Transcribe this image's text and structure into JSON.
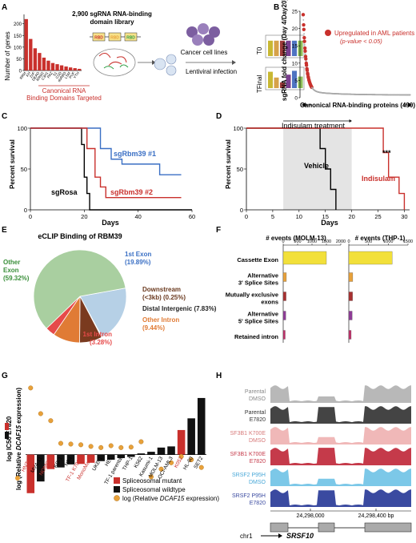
{
  "panels": {
    "A": {
      "letter": "A",
      "ylabel": "Number of genes",
      "library_line1": "2,900 sgRNA  RNA-binding",
      "library_line2": "domain library",
      "domain_boxes": [
        "RBD",
        "RBD",
        "RBD"
      ],
      "domain_colors": [
        "#c9302c",
        "#e8a13a",
        "#2e9e44"
      ],
      "xcaption_line1": "Canonical RNA",
      "xcaption_line2": "Binding Domains Targeted",
      "infection_label": "Lentiviral infection",
      "cells_label": "Cancer cell lines",
      "t0_label": "T0",
      "tfinal_label": "TFinal",
      "t0_bars": [
        {
          "h": 0.8,
          "color": "#c8b833"
        },
        {
          "h": 0.8,
          "color": "#d6a24a"
        },
        {
          "h": 0.8,
          "color": "#9e3a3a"
        },
        {
          "h": 0.8,
          "color": "#7a3f8f"
        },
        {
          "h": 0.8,
          "color": "#4f74c2"
        },
        {
          "h": 0.8,
          "color": "#8ebf5a"
        }
      ],
      "tfinal_bars": [
        {
          "h": 0.85,
          "color": "#c8b833"
        },
        {
          "h": 0.55,
          "color": "#d6a24a"
        },
        {
          "h": 0.3,
          "color": "#9e3a3a"
        },
        {
          "h": 0.7,
          "color": "#7a3f8f"
        },
        {
          "h": 0.9,
          "color": "#4f74c2"
        },
        {
          "h": 0.6,
          "color": "#8ebf5a"
        }
      ]
    },
    "B": {
      "letter": "B",
      "legend_line1": "Upregulated in AML patients",
      "legend_line2": "(p-value < 0.05)",
      "xlabel": "Canonical RNA-binding proteins (490)"
    },
    "C": {
      "letter": "C",
      "sgrbm39_1": "sgRbm39 #1",
      "sgrbm39_2": "sgRbm39 #2",
      "sgrosa": "sgRosa"
    },
    "D": {
      "letter": "D",
      "treatment": "Indisulam treatment",
      "vehicle": "Vehicle",
      "indisulam": "Indisulam",
      "stars": "***"
    },
    "E": {
      "letter": "E",
      "title": "eCLIP Binding of RBM39",
      "other_exon_1": "Other",
      "other_exon_2": "Exon",
      "other_exon_3": "(59.32%)",
      "first_exon_1": "1st Exon",
      "first_exon_2": "(19.89%)",
      "downstream_1": "Downstream",
      "downstream_2": "(<3kb) (0.25%)",
      "distal": "Distal Intergenic (7.83%)",
      "other_intron_1": "Other Intron",
      "other_intron_2": "(9.44%)",
      "first_intron_1": "1st Intron",
      "first_intron_2": "(3.28%)"
    },
    "F": {
      "letter": "F",
      "molm_title": "# events (MOLM-13)",
      "thp_title": "# events (THP-1)"
    },
    "G": {
      "letter": "G",
      "ylabel_1": "log  IC50 E7820",
      "ylabel_2a": "log (Relative",
      "ylabel_2b": "DCAF15",
      "ylabel_2c": "expression)",
      "legend_mutant": "Spliceosomal mutant",
      "legend_wildtype": "Spliceosomal wildtype",
      "legend_dot_a": "log (Relative",
      "legend_dot_b": "DCAF15",
      "legend_dot_c": "expression)"
    },
    "H": {
      "letter": "H",
      "coord_left": "24,298,000",
      "coord_right": "24,298,400 bp",
      "chrom": "chr1",
      "gene": "SRSF10"
    }
  },
  "chart_data": [
    {
      "panel": "A",
      "type": "bar",
      "categories": [
        "RRM",
        "KH",
        "ZnF",
        "DEAD",
        "RRM2",
        "C3H1",
        "PAZ",
        "S1",
        "CSD",
        "dsRBD",
        "LSM",
        "PUF",
        "YTH"
      ],
      "values": [
        220,
        135,
        95,
        75,
        55,
        42,
        32,
        27,
        22,
        17,
        13,
        10,
        7
      ],
      "ylim": [
        0,
        240
      ],
      "yticks": [
        0,
        50,
        100,
        150,
        200
      ],
      "colors": [
        "#c9302c",
        "#e8a13a",
        "#2e9e44"
      ]
    },
    {
      "panel": "B",
      "type": "scatter",
      "ylabel": "sgRNA fold change (Day 4/Day20)",
      "yticks": [
        0,
        5,
        10,
        15,
        20,
        25
      ],
      "ylim": [
        0,
        25
      ],
      "xlim": [
        0,
        490
      ],
      "n_points": 490,
      "highlight_color": "#c9302c",
      "other_color": "#aaaaaa"
    },
    {
      "panel": "C",
      "type": "line",
      "xlabel": "Days",
      "ylabel": "Percent survival",
      "xticks": [
        0,
        20,
        40,
        60
      ],
      "yticks": [
        0,
        50,
        100
      ],
      "xlim": [
        0,
        60
      ],
      "ylim": [
        0,
        100
      ],
      "series": [
        {
          "name": "sgRosa",
          "color": "#000000",
          "x": [
            0,
            19,
            19,
            20,
            20,
            21,
            21,
            22,
            22,
            60
          ],
          "y": [
            100,
            100,
            80,
            80,
            40,
            40,
            20,
            20,
            0,
            0
          ]
        },
        {
          "name": "sgRbm39 #1",
          "color": "#3a6fc4",
          "x": [
            0,
            26,
            26,
            30,
            30,
            34,
            34,
            48,
            48,
            56
          ],
          "y": [
            100,
            100,
            75,
            75,
            62,
            62,
            56,
            56,
            43,
            43
          ]
        },
        {
          "name": "sgRbm39 #2",
          "color": "#c9302c",
          "x": [
            0,
            21,
            21,
            24,
            24,
            26,
            26,
            28,
            28,
            56
          ],
          "y": [
            100,
            100,
            75,
            75,
            40,
            40,
            28,
            28,
            15,
            15
          ]
        }
      ]
    },
    {
      "panel": "D",
      "type": "line",
      "xlabel": "Days",
      "ylabel": "Percent survival",
      "xticks": [
        0,
        5,
        10,
        15,
        20,
        25,
        30
      ],
      "yticks": [
        0,
        50,
        100
      ],
      "xlim": [
        0,
        31
      ],
      "ylim": [
        0,
        100
      ],
      "treatment_window": [
        7,
        20
      ],
      "series": [
        {
          "name": "Vehicle",
          "color": "#000000",
          "x": [
            0,
            14,
            14,
            15,
            15,
            16,
            16,
            17,
            17
          ],
          "y": [
            100,
            100,
            75,
            75,
            50,
            50,
            25,
            25,
            0
          ]
        },
        {
          "name": "Indisulam",
          "color": "#c9302c",
          "x": [
            0,
            26,
            26,
            27,
            27,
            29,
            29,
            30,
            30
          ],
          "y": [
            100,
            100,
            70,
            70,
            40,
            40,
            20,
            20,
            0
          ]
        }
      ]
    },
    {
      "panel": "E",
      "type": "pie",
      "slices": [
        {
          "label": "Other Exon",
          "value": 59.32,
          "color": "#a9cfa0"
        },
        {
          "label": "1st Exon",
          "value": 19.89,
          "color": "#b6d0e6"
        },
        {
          "label": "Downstream (<3kb)",
          "value": 0.25,
          "color": "#c3a58a"
        },
        {
          "label": "Distal Intergenic",
          "value": 7.83,
          "color": "#7a3a1f"
        },
        {
          "label": "Other Intron",
          "value": 9.44,
          "color": "#e07b35"
        },
        {
          "label": "1st Intron",
          "value": 3.28,
          "color": "#e64a4a"
        }
      ]
    },
    {
      "panel": "F",
      "type": "bar",
      "categories": [
        "Cassette Exon",
        "Alternative 3' Splice Sites",
        "Mutually exclusive exons",
        "Alternative 5' Splice Sites",
        "Retained intron"
      ],
      "category_lines": [
        [
          "Cassette Exon"
        ],
        [
          "Alternative",
          "3' Splice Sites"
        ],
        [
          "Mutually exclusive",
          "exons"
        ],
        [
          "Alternative",
          "5' Splice Sites"
        ],
        [
          "Retained intron"
        ]
      ],
      "colors": [
        "#f2e03a",
        "#e8a13a",
        "#a83030",
        "#8e3c96",
        "#c0306a"
      ],
      "series": [
        {
          "name": "MOLM-13",
          "values": [
            1500,
            110,
            100,
            90,
            70
          ],
          "xticks": [
            0,
            500,
            1000,
            1500,
            2000
          ],
          "xlim": [
            0,
            2000
          ]
        },
        {
          "name": "THP-1",
          "values": [
            1100,
            100,
            95,
            85,
            60
          ],
          "xticks": [
            0,
            500,
            1000,
            1500
          ],
          "xlim": [
            0,
            1500
          ]
        }
      ]
    },
    {
      "panel": "G",
      "type": "bar",
      "categories": [
        "HNT34",
        "MV4-11",
        "NOMO-1",
        "KG-1",
        "NB4",
        "TF-1 K700E",
        "MonoMac6",
        "UKE-1",
        "HEL",
        "TF-1 parental",
        "THP-1",
        "K562",
        "Kasumi-1",
        "MOLM-13",
        "OCI-AML3",
        "K052",
        "HL-60",
        "SET2"
      ],
      "mutant": [
        true,
        false,
        true,
        false,
        false,
        true,
        true,
        false,
        false,
        false,
        false,
        false,
        false,
        false,
        false,
        true,
        false,
        false
      ],
      "values": [
        -1.65,
        -1.15,
        -0.62,
        -0.55,
        -0.42,
        -0.4,
        -0.35,
        -0.28,
        -0.22,
        -0.15,
        -0.1,
        0.05,
        0.12,
        0.3,
        0.35,
        1.05,
        1.55,
        2.42
      ],
      "dots": [
        2.85,
        1.75,
        1.45,
        0.48,
        0.45,
        0.42,
        0.35,
        0.3,
        0.38,
        0.3,
        0.32,
        0.55,
        -0.95,
        -0.62,
        -0.35,
        -0.08,
        -0.22,
        -0.55
      ],
      "ylim": [
        -2,
        3
      ],
      "mutant_color": "#c9302c",
      "wildtype_color": "#111111",
      "dot_color": "#e8a13a"
    },
    {
      "panel": "H",
      "type": "area",
      "tracks": [
        {
          "label1": "Parental",
          "label2": "DMSO",
          "color": "#b8b8b8",
          "label_color": "#888888",
          "skip_exon": 0.35
        },
        {
          "label1": "Parental",
          "label2": "E7820",
          "color": "#444444",
          "label_color": "#333333",
          "skip_exon": 0.9
        },
        {
          "label1": "SF3B1 K700E",
          "label2": "DMSO",
          "color": "#f0b8b8",
          "label_color": "#d77a7a",
          "skip_exon": 0.4
        },
        {
          "label1": "SF3B1 K700E",
          "label2": "E7820",
          "color": "#c53a4a",
          "label_color": "#c53a4a",
          "skip_exon": 0.95
        },
        {
          "label1": "SRSF2 P95H",
          "label2": "DMSO",
          "color": "#7cc8e8",
          "label_color": "#4aa8d8",
          "skip_exon": 0.4
        },
        {
          "label1": "SRSF2 P95H",
          "label2": "E7820",
          "color": "#3a4aa0",
          "label_color": "#3a4aa0",
          "skip_exon": 0.9
        }
      ]
    }
  ]
}
